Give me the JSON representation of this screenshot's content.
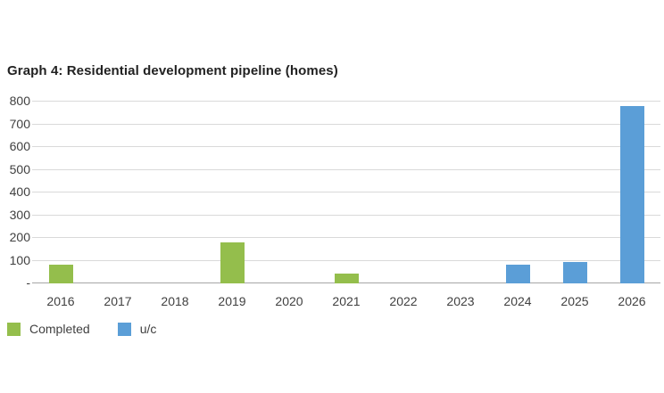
{
  "chart_data": {
    "type": "bar",
    "title": "Graph 4: Residential development pipeline (homes)",
    "categories": [
      "2016",
      "2017",
      "2018",
      "2019",
      "2020",
      "2021",
      "2022",
      "2023",
      "2024",
      "2025",
      "2026"
    ],
    "series": [
      {
        "name": "Completed",
        "color": "#94be4c",
        "values": [
          80,
          0,
          0,
          175,
          0,
          40,
          0,
          0,
          0,
          0,
          0
        ]
      },
      {
        "name": "u/c",
        "color": "#5b9ed7",
        "values": [
          0,
          0,
          0,
          0,
          0,
          0,
          0,
          0,
          80,
          90,
          775
        ]
      }
    ],
    "xlabel": "",
    "ylabel": "",
    "ylim": [
      0,
      800
    ],
    "ytick_step": 100,
    "zero_tick_label": "-",
    "grid": "horizontal",
    "legend_position": "bottom-left",
    "colors": {
      "gridline": "#d9d9d9",
      "axis_line": "#a6a6a6",
      "axis_text": "#404040",
      "title_text": "#222222",
      "background": "#ffffff"
    }
  }
}
